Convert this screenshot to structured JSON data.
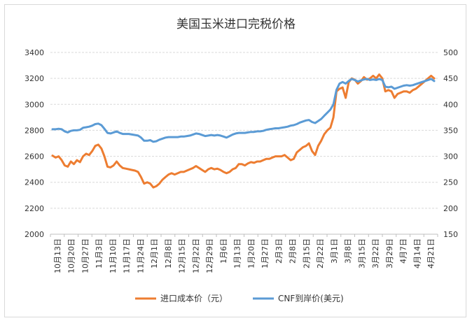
{
  "chart_data": {
    "type": "line",
    "title": "美国玉米进口完税价格",
    "y_left": {
      "min": 2000,
      "max": 3400,
      "step": 200,
      "ticks": [
        "2000",
        "2200",
        "2400",
        "2600",
        "2800",
        "3000",
        "3200",
        "3400"
      ]
    },
    "y_right": {
      "min": 150,
      "max": 500,
      "step": 50,
      "ticks": [
        "150",
        "200",
        "250",
        "300",
        "350",
        "400",
        "450",
        "500"
      ]
    },
    "x_tick_labels": [
      "10月13日",
      "10月20日",
      "10月27日",
      "11月3日",
      "11月10日",
      "11月17日",
      "11月24日",
      "12月1日",
      "12月8日",
      "12月15日",
      "12月22日",
      "12月29日",
      "1月6日",
      "1月13日",
      "1月20日",
      "1月27日",
      "2月3日",
      "2月8日",
      "2月15日",
      "2月22日",
      "3月1日",
      "3月8日",
      "3月15日",
      "3月22日",
      "3月29日",
      "4月7日",
      "4月14日",
      "4月21日"
    ],
    "series": [
      {
        "name": "进口成本价（元）",
        "axis": "left",
        "color": "#ED7D31",
        "values": [
          2605,
          2590,
          2600,
          2570,
          2530,
          2520,
          2560,
          2540,
          2570,
          2555,
          2600,
          2620,
          2610,
          2640,
          2680,
          2690,
          2660,
          2600,
          2520,
          2515,
          2530,
          2560,
          2530,
          2510,
          2505,
          2500,
          2495,
          2490,
          2480,
          2440,
          2390,
          2400,
          2390,
          2360,
          2370,
          2390,
          2420,
          2440,
          2460,
          2470,
          2460,
          2470,
          2480,
          2480,
          2490,
          2500,
          2510,
          2525,
          2510,
          2495,
          2480,
          2500,
          2510,
          2500,
          2505,
          2495,
          2480,
          2470,
          2480,
          2500,
          2510,
          2540,
          2540,
          2530,
          2545,
          2555,
          2550,
          2560,
          2560,
          2570,
          2580,
          2580,
          2590,
          2600,
          2600,
          2600,
          2610,
          2590,
          2570,
          2580,
          2630,
          2650,
          2670,
          2680,
          2700,
          2640,
          2610,
          2680,
          2720,
          2770,
          2800,
          2820,
          2900,
          3100,
          3120,
          3130,
          3050,
          3170,
          3200,
          3190,
          3160,
          3180,
          3210,
          3190,
          3200,
          3220,
          3200,
          3230,
          3200,
          3100,
          3110,
          3100,
          3050,
          3080,
          3090,
          3100,
          3100,
          3090,
          3110,
          3120,
          3140,
          3160,
          3180,
          3200,
          3220,
          3200
        ]
      },
      {
        "name": "CNF到岸价(美元)",
        "axis": "right",
        "color": "#5B9BD5",
        "values": [
          352,
          352,
          353,
          352,
          348,
          346,
          349,
          350,
          350,
          351,
          355,
          356,
          357,
          359,
          362,
          363,
          360,
          353,
          345,
          344,
          346,
          348,
          345,
          343,
          343,
          343,
          342,
          341,
          340,
          336,
          330,
          330,
          331,
          328,
          329,
          332,
          334,
          336,
          337,
          337,
          337,
          337,
          338,
          338,
          339,
          340,
          342,
          344,
          343,
          341,
          339,
          340,
          341,
          340,
          341,
          340,
          338,
          336,
          339,
          342,
          344,
          345,
          345,
          345,
          346,
          347,
          347,
          348,
          348,
          349,
          351,
          352,
          353,
          354,
          354,
          355,
          356,
          357,
          359,
          360,
          362,
          365,
          367,
          369,
          370,
          366,
          364,
          368,
          372,
          378,
          384,
          390,
          400,
          428,
          440,
          443,
          440,
          445,
          449,
          447,
          444,
          446,
          448,
          449,
          447,
          448,
          447,
          449,
          447,
          434,
          433,
          434,
          430,
          432,
          434,
          436,
          437,
          436,
          437,
          439,
          441,
          443,
          445,
          447,
          449,
          445
        ]
      }
    ]
  }
}
